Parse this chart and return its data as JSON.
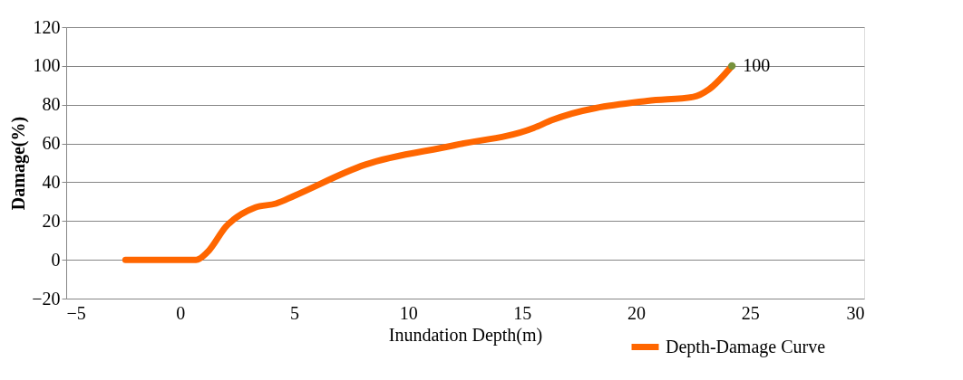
{
  "chart_data": {
    "type": "line",
    "xlabel": "Inundation Depth(m)",
    "ylabel": "Damage(%)",
    "xlim": [
      -5,
      30
    ],
    "xticks": [
      -5,
      0,
      5,
      10,
      15,
      20,
      25,
      30
    ],
    "ylim": [
      -20,
      120
    ],
    "yticks": [
      -20,
      0,
      20,
      40,
      60,
      80,
      100,
      120
    ],
    "grid": "y",
    "legend": "bottom right",
    "series": [
      {
        "name": "Depth-Damage Curve",
        "color": "#ff6600",
        "line_style": "solid",
        "marker": "none",
        "x": [
          -2.4,
          0.7,
          1.2,
          2.0,
          3.3,
          4.2,
          5.0,
          8.1,
          12.0,
          15.5,
          16.3,
          20.5,
          22.5,
          23.2,
          24.2
        ],
        "values": [
          0,
          0,
          4,
          17,
          27,
          29,
          33,
          49,
          59,
          68,
          72,
          82,
          84,
          88,
          100
        ]
      },
      {
        "type": "scatter",
        "color": "#76923c",
        "marker": "circle",
        "x": [
          24.2
        ],
        "values": [
          100
        ],
        "value_labels": [
          "100"
        ]
      }
    ]
  }
}
